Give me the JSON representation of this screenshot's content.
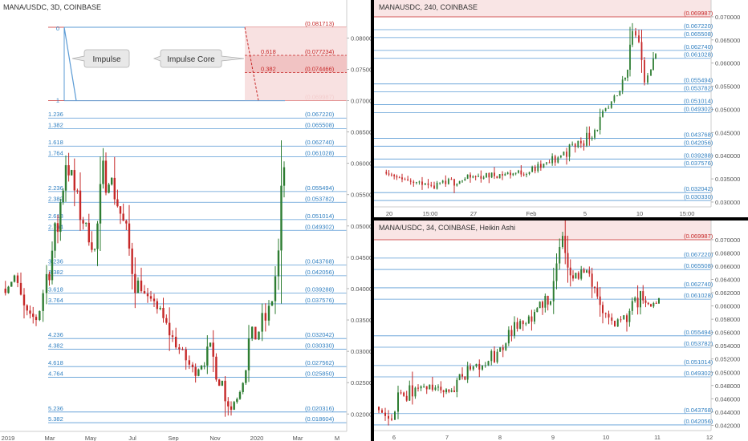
{
  "colors": {
    "fib_line": "#5b9bd5",
    "fib_label": "#2f7fc1",
    "red_level": "#c62828",
    "up_candle": "#2e7d32",
    "down_candle": "#c62828",
    "axis_text": "#555555",
    "callout_fill": "#e8e8e8",
    "zone_fill": "#f7dede"
  },
  "chart_data": [
    {
      "type": "candlestick",
      "title": "MANA/USDC, 3D, COINBASE",
      "x_tick_labels": [
        "2019",
        "Mar",
        "May",
        "Jul",
        "Sep",
        "Nov",
        "2020",
        "Mar",
        "M"
      ],
      "y_ticks": [
        "0.080000",
        "0.075000",
        "0.070000",
        "0.065000",
        "0.060000",
        "0.055000",
        "0.050000",
        "0.045000",
        "0.040000",
        "0.035000",
        "0.030000",
        "0.025000",
        "0.020000"
      ],
      "ylim": [
        0.0185,
        0.0835
      ],
      "fib_ratio_labels": [
        "0",
        "1",
        "1.236",
        "1.382",
        "1.618",
        "1.764",
        "2.236",
        "2.382",
        "2.618",
        "2.764",
        "3.236",
        "3.382",
        "3.618",
        "3.764",
        "4.236",
        "4.382",
        "4.618",
        "4.764",
        "5.236",
        "5.382"
      ],
      "price_levels": [
        "0.081713",
        "0.069987",
        "0.067220",
        "0.065508",
        "0.062740",
        "0.061028",
        "0.055494",
        "0.053782",
        "0.051014",
        "0.049302",
        "0.043768",
        "0.042056",
        "0.039288",
        "0.037576",
        "0.032042",
        "0.030330",
        "0.027562",
        "0.025850",
        "0.020316",
        "0.018604"
      ],
      "impulse_zone_labels": [
        "0.618",
        "0.382"
      ],
      "impulse_zone_values": [
        "0.077234",
        "0.074466"
      ],
      "annotations": [
        "Impulse",
        "Impulse Core"
      ]
    },
    {
      "type": "candlestick",
      "title": "MANAUSDC, 240, COINBASE",
      "x_tick_labels": [
        "20",
        "15:00",
        "27",
        "Feb",
        "5",
        "10",
        "15:00"
      ],
      "y_ticks": [
        "0.070000",
        "0.065000",
        "0.060000",
        "0.055000",
        "0.050000",
        "0.045000",
        "0.040000",
        "0.035000",
        "0.030000"
      ],
      "ylim": [
        0.0293,
        0.0712
      ],
      "price_levels": [
        "0.069987",
        "0.067220",
        "0.065508",
        "0.062740",
        "0.061028",
        "0.055494",
        "0.053782",
        "0.051014",
        "0.049302",
        "0.043768",
        "0.042056",
        "0.039288",
        "0.037576",
        "0.032042",
        "0.030330"
      ]
    },
    {
      "type": "candlestick",
      "title": "MANA/USDC, 34, COINBASE, Heikin Ashi",
      "x_tick_labels": [
        "6",
        "7",
        "8",
        "9",
        "10",
        "11",
        "12"
      ],
      "y_ticks": [
        "0.070000",
        "0.068000",
        "0.066000",
        "0.064000",
        "0.062000",
        "0.060000",
        "0.058000",
        "0.056000",
        "0.054000",
        "0.052000",
        "0.050000",
        "0.048000",
        "0.046000",
        "0.044000",
        "0.042000"
      ],
      "ylim": [
        0.0412,
        0.0712
      ],
      "price_levels": [
        "0.069987",
        "0.067220",
        "0.065508",
        "0.062740",
        "0.061028",
        "0.055494",
        "0.053782",
        "0.051014",
        "0.049302",
        "0.043768",
        "0.042056"
      ]
    }
  ]
}
